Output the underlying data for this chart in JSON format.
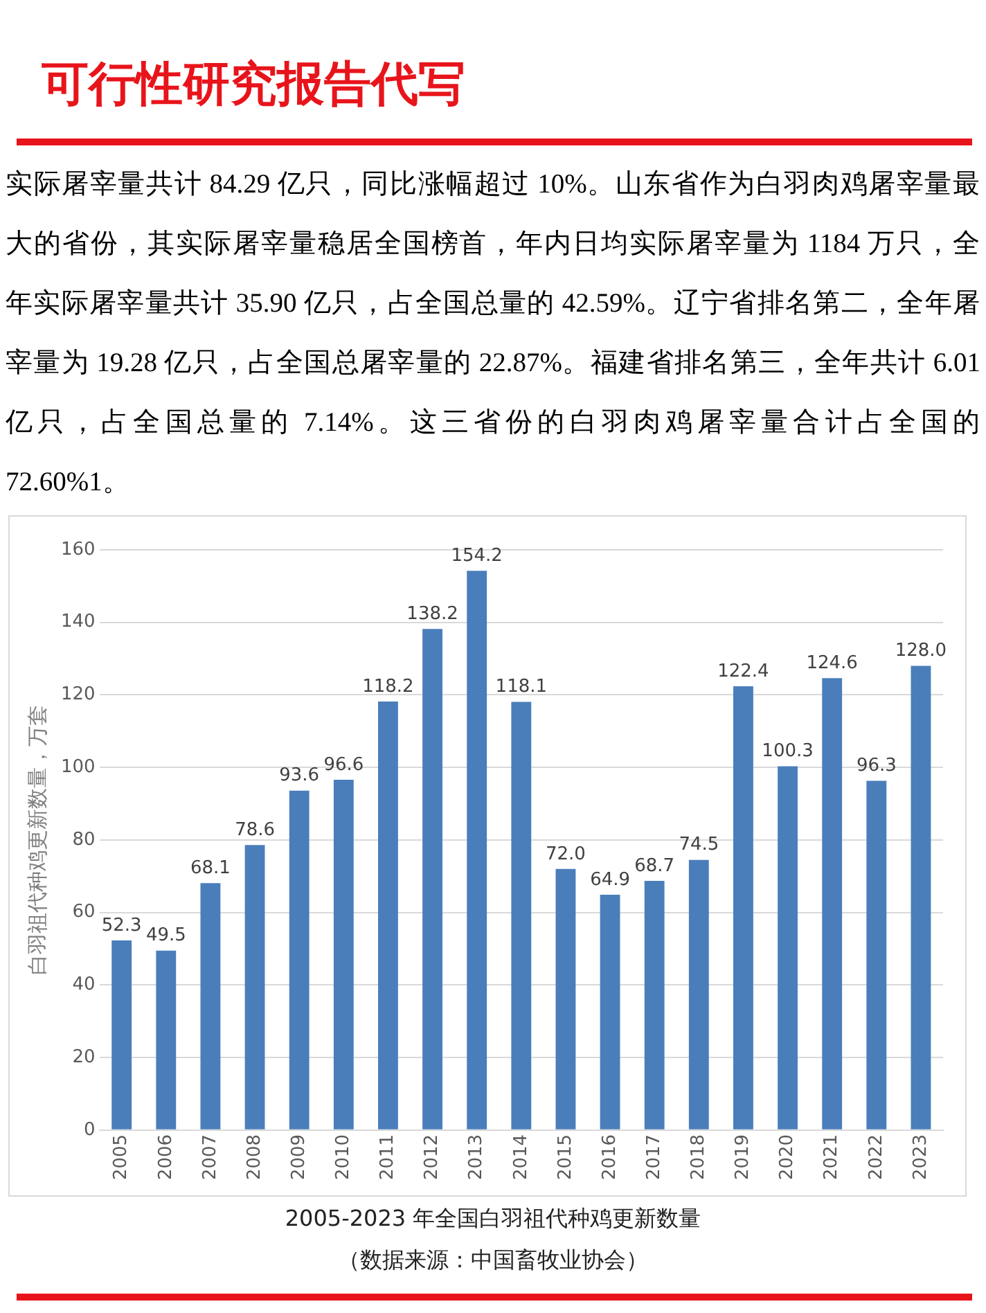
{
  "chart_data": {
    "type": "bar",
    "title": "可行性研究报告代写",
    "subtitle": "实际屠宰量共计 84.29 亿只，同比涨幅超过 10%。山东省作为白羽肉鸡屠宰量最大的省份，其实际屠宰量稳居全国榜首，年内日均实际屠宰量为 1184 万只，全年实际屠宰量共计 35.90 亿只，占全国总量的 42.59%。辽宁省排名第二，全年屠宰量为 19.28 亿只，占全国总屠宰量的 22.87%。福建省排名第三，全年共计 6.01 亿只，占全国总量的 7.14%。这三省份的白羽肉鸡屠宰量合计占全国的 72.60%1。",
    "ylabel": "白羽祖代种鸡更新数量，万套",
    "categories": [
      "2005",
      "2006",
      "2007",
      "2008",
      "2009",
      "2010",
      "2011",
      "2012",
      "2013",
      "2014",
      "2015",
      "2016",
      "2017",
      "2018",
      "2019",
      "2020",
      "2021",
      "2022",
      "2023"
    ],
    "values": [
      52.3,
      49.5,
      68.1,
      78.6,
      93.6,
      96.6,
      118.2,
      138.2,
      154.2,
      118.1,
      72.0,
      64.9,
      68.7,
      74.5,
      122.4,
      100.3,
      124.6,
      96.3,
      128.0
    ],
    "value_labels": [
      "52.3",
      "49.5",
      "68.1",
      "78.6",
      "93.6",
      "96.6",
      "118.2",
      "138.2",
      "154.2",
      "118.1",
      "72.0",
      "64.9",
      "68.7",
      "74.5",
      "122.4",
      "100.3",
      "124.6",
      "96.3",
      "128.0"
    ],
    "color": "#4a7ebb",
    "ylim": [
      0,
      160
    ],
    "yticks": [
      0,
      20,
      40,
      60,
      80,
      100,
      120,
      140,
      160
    ],
    "grid": "y",
    "annotations": [
      "2005-2023 年全国白羽祖代种鸡更新数量",
      "（数据来源：中国畜牧业协会）"
    ]
  }
}
